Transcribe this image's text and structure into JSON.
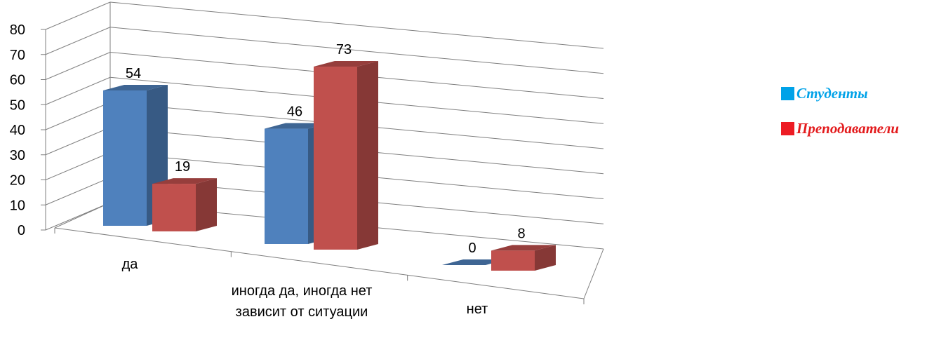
{
  "chart_data": {
    "type": "bar",
    "categories": [
      "да",
      "иногда да, иногда нет зависит от ситуации",
      "нет"
    ],
    "series": [
      {
        "name": "Студенты",
        "values": [
          54,
          46,
          0
        ],
        "color": "#4f81bd",
        "legend_color": "#00a2e8",
        "legend_text_color": "#00a2e8"
      },
      {
        "name": "Преподаватели",
        "values": [
          19,
          73,
          8
        ],
        "color": "#c0504d",
        "legend_color": "#ed1c24",
        "legend_text_color": "#e31a1c"
      }
    ],
    "y_ticks": [
      "0",
      "10",
      "20",
      "30",
      "40",
      "50",
      "60",
      "70",
      "80"
    ],
    "ylim": [
      0,
      80
    ],
    "grid": true,
    "legend_position": "right",
    "style": "3d-clustered-column"
  }
}
